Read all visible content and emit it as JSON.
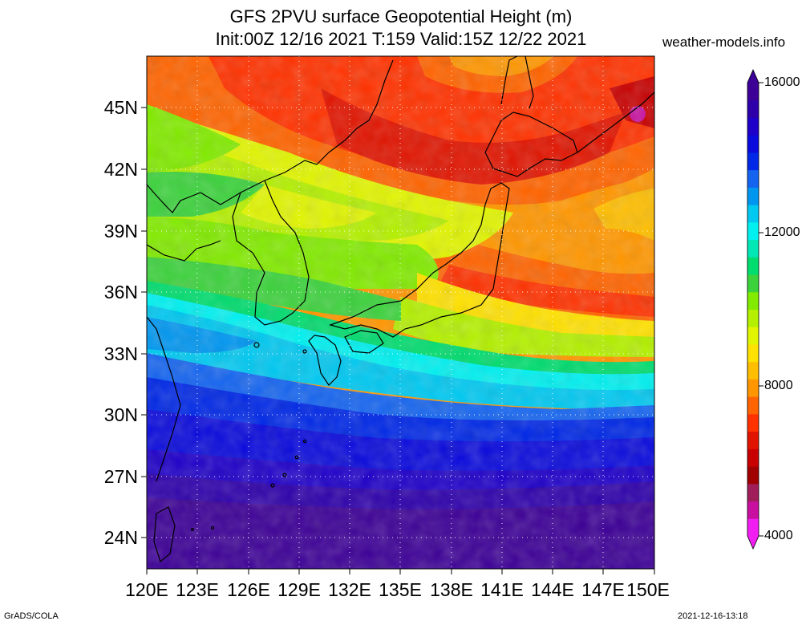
{
  "title": {
    "line1": "GFS 2PVU surface Geopotential Height (m)",
    "line2": "Init:00Z 12/16 2021 T:159 Valid:15Z 12/22 2021"
  },
  "site": "weather-models.info",
  "map": {
    "lon_range": [
      120,
      150
    ],
    "lat_range": [
      22.5,
      47.5
    ],
    "lat_ticks": [
      "45N",
      "42N",
      "39N",
      "36N",
      "33N",
      "30N",
      "27N",
      "24N"
    ],
    "lon_ticks": [
      "120E",
      "123E",
      "126E",
      "129E",
      "132E",
      "135E",
      "138E",
      "141E",
      "144E",
      "147E",
      "150E"
    ],
    "gridlines": "dotted"
  },
  "colorbar": {
    "labels": [
      "16000",
      "12000",
      "8000",
      "4000"
    ],
    "colors": [
      "#f01ef0",
      "#c80fa0",
      "#a01e5a",
      "#a00000",
      "#c80000",
      "#e11400",
      "#ff3200",
      "#ff6400",
      "#ff9600",
      "#ffbe00",
      "#ffe100",
      "#e1f500",
      "#b4f000",
      "#82eb00",
      "#3cd23c",
      "#00dc6e",
      "#00e6b4",
      "#00f0f0",
      "#00c8f0",
      "#0096f0",
      "#1464f0",
      "#0028e6",
      "#0a0adc",
      "#1e00c8",
      "#2d00aa",
      "#3c0096"
    ],
    "markers": [
      "triangle-up",
      "triangle-down"
    ]
  },
  "footer": {
    "left": "GrADS/COLA",
    "right": "2021-12-16-13:18"
  }
}
